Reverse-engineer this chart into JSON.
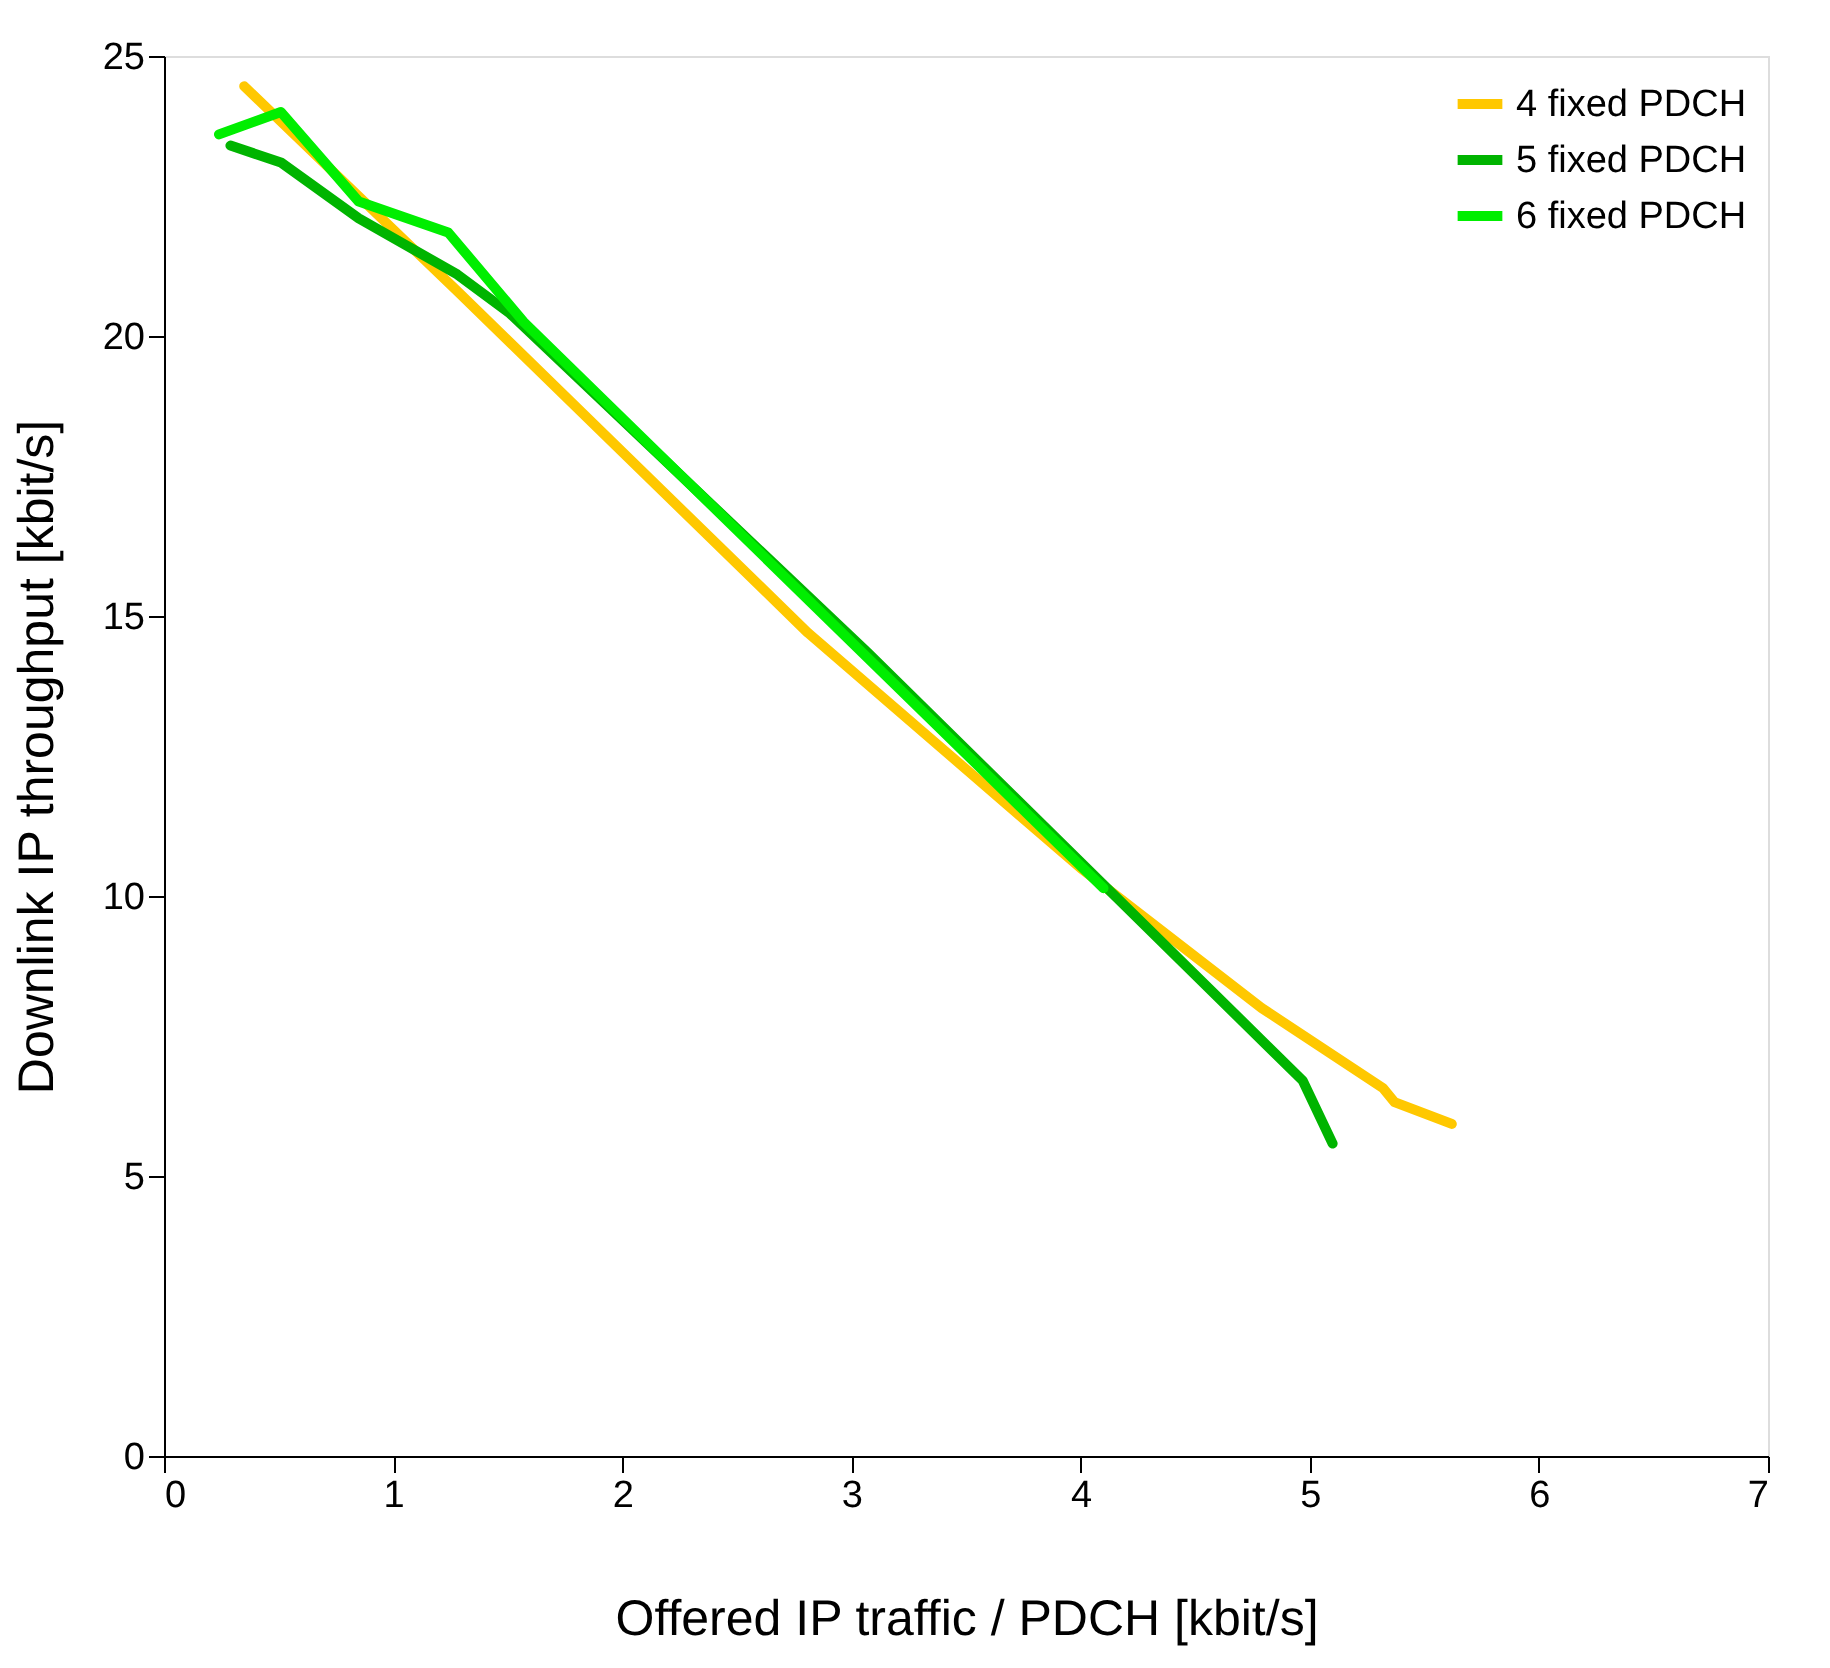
{
  "chart_data": {
    "type": "line",
    "xlabel": "Offered IP traffic / PDCH [kbit/s]",
    "ylabel": "Downlink IP throughput [kbit/s]",
    "xlim": [
      0,
      7
    ],
    "xticks": [
      0,
      1,
      2,
      3,
      4,
      5,
      6,
      7
    ],
    "ylim": [
      0,
      25
    ],
    "yticks": [
      0,
      5,
      10,
      15,
      20,
      25
    ],
    "grid": false,
    "legend": "top right",
    "marker": "none",
    "line_style": "solid",
    "series": [
      {
        "name": "4 fixed PDCH",
        "color": "#ffc800",
        "x": [
          0.35,
          1.28,
          2.81,
          4.0,
          4.79,
          5.32,
          5.37,
          5.62
        ],
        "values": [
          24.46,
          20.8,
          14.7,
          10.5,
          8.0,
          6.57,
          6.32,
          5.93
        ]
      },
      {
        "name": "5 fixed PDCH",
        "color": "#00b400",
        "x": [
          0.29,
          0.51,
          0.85,
          1.28,
          1.51,
          3.07,
          4.97,
          5.1
        ],
        "values": [
          23.4,
          23.1,
          22.1,
          21.1,
          20.4,
          14.35,
          6.7,
          5.58
        ]
      },
      {
        "name": "6 fixed PDCH",
        "color": "#00ee00",
        "x": [
          0.24,
          0.51,
          0.85,
          1.24,
          1.57,
          4.1
        ],
        "values": [
          23.6,
          24.0,
          22.4,
          21.85,
          20.25,
          10.14
        ]
      }
    ]
  }
}
